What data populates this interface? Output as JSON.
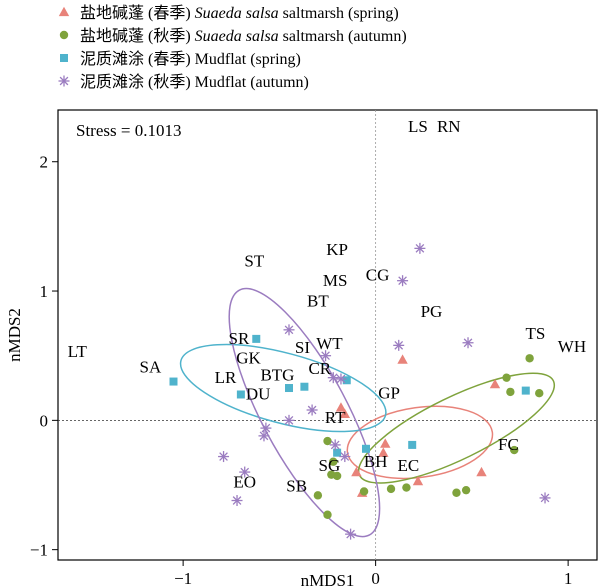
{
  "chart_data": {
    "type": "scatter",
    "xlabel": "nMDS1",
    "ylabel": "nMDS2",
    "xlim": [
      -1.65,
      1.15
    ],
    "ylim": [
      -1.08,
      2.4
    ],
    "x_ticks": [
      -1,
      0,
      1
    ],
    "y_ticks": [
      -1,
      0,
      1,
      2
    ],
    "annotation": "Stress = 0.1013",
    "reference_lines": {
      "x": 0,
      "y": 0
    },
    "legend_position": "top-left, outside plot",
    "legend": [
      {
        "series": 0,
        "prefix": "盐地碱蓬 (春季) ",
        "italic": "Suaeda salsa",
        "suffix": " saltmarsh (spring)"
      },
      {
        "series": 1,
        "prefix": "盐地碱蓬 (秋季) ",
        "italic": "Suaeda salsa",
        "suffix": " saltmarsh (autumn)"
      },
      {
        "series": 2,
        "prefix": "泥质滩涂 (春季) ",
        "italic": "",
        "suffix": "Mudflat (spring)"
      },
      {
        "series": 3,
        "prefix": "泥质滩涂 (秋季) ",
        "italic": "",
        "suffix": "Mudflat (autumn)"
      }
    ],
    "series": [
      {
        "marker": "triangle",
        "color": "#e8837a",
        "ellipse": {
          "cx": 0.23,
          "cy": -0.17,
          "rx": 0.38,
          "ry": 0.27,
          "angle": 8
        },
        "points": [
          [
            -0.18,
            0.1
          ],
          [
            -0.16,
            0.05
          ],
          [
            0.05,
            -0.18
          ],
          [
            0.14,
            0.47
          ],
          [
            0.22,
            -0.47
          ],
          [
            0.62,
            0.28
          ],
          [
            0.55,
            -0.4
          ],
          [
            -0.07,
            -0.56
          ],
          [
            0.04,
            -0.25
          ],
          [
            -0.1,
            -0.4
          ]
        ]
      },
      {
        "marker": "circle",
        "color": "#7fa33c",
        "ellipse": {
          "cx": 0.42,
          "cy": -0.06,
          "rx": 0.56,
          "ry": 0.24,
          "angle": 26
        },
        "points": [
          [
            -0.25,
            -0.73
          ],
          [
            -0.23,
            -0.42
          ],
          [
            -0.22,
            -0.32
          ],
          [
            -0.25,
            -0.16
          ],
          [
            -0.06,
            -0.55
          ],
          [
            0.08,
            -0.53
          ],
          [
            0.16,
            -0.52
          ],
          [
            0.42,
            -0.56
          ],
          [
            0.72,
            -0.23
          ],
          [
            0.68,
            0.33
          ],
          [
            0.7,
            0.22
          ],
          [
            0.8,
            0.48
          ],
          [
            0.85,
            0.21
          ],
          [
            -0.3,
            -0.58
          ],
          [
            -0.2,
            -0.43
          ],
          [
            0.47,
            -0.54
          ]
        ]
      },
      {
        "marker": "square",
        "color": "#4fb3cc",
        "ellipse": {
          "cx": -0.48,
          "cy": 0.25,
          "rx": 0.55,
          "ry": 0.27,
          "angle": -15
        },
        "points": [
          [
            -1.05,
            0.3
          ],
          [
            -0.62,
            0.63
          ],
          [
            -0.7,
            0.2
          ],
          [
            -0.45,
            0.25
          ],
          [
            -0.37,
            0.26
          ],
          [
            -0.15,
            0.31
          ],
          [
            -0.2,
            -0.25
          ],
          [
            -0.05,
            -0.22
          ],
          [
            0.19,
            -0.19
          ],
          [
            0.78,
            0.23
          ]
        ]
      },
      {
        "marker": "star",
        "color": "#9b7cc0",
        "ellipse": {
          "cx": -0.37,
          "cy": 0.06,
          "rx": 0.72,
          "ry": 0.33,
          "angle": -62
        },
        "points": [
          [
            -0.79,
            -0.28
          ],
          [
            -0.72,
            -0.62
          ],
          [
            -0.58,
            -0.12
          ],
          [
            -0.57,
            -0.06
          ],
          [
            -0.45,
            0.7
          ],
          [
            -0.45,
            0.0
          ],
          [
            -0.33,
            0.08
          ],
          [
            -0.26,
            0.5
          ],
          [
            -0.18,
            0.32
          ],
          [
            -0.16,
            -0.28
          ],
          [
            0.12,
            0.58
          ],
          [
            0.14,
            1.08
          ],
          [
            0.23,
            1.33
          ],
          [
            0.48,
            0.6
          ],
          [
            0.88,
            -0.6
          ],
          [
            -0.13,
            -0.88
          ],
          [
            -0.22,
            0.33
          ],
          [
            -0.21,
            -0.19
          ],
          [
            -0.68,
            -0.4
          ]
        ]
      }
    ],
    "species_labels": [
      {
        "text": "LS",
        "x": 0.22,
        "y": 2.23
      },
      {
        "text": "RN",
        "x": 0.38,
        "y": 2.23
      },
      {
        "text": "ST",
        "x": -0.63,
        "y": 1.19
      },
      {
        "text": "KP",
        "x": -0.2,
        "y": 1.28
      },
      {
        "text": "CG",
        "x": 0.01,
        "y": 1.08
      },
      {
        "text": "MS",
        "x": -0.21,
        "y": 1.04
      },
      {
        "text": "BT",
        "x": -0.3,
        "y": 0.88
      },
      {
        "text": "PG",
        "x": 0.29,
        "y": 0.8
      },
      {
        "text": "TS",
        "x": 0.83,
        "y": 0.63
      },
      {
        "text": "WH",
        "x": 1.02,
        "y": 0.53
      },
      {
        "text": "LT",
        "x": -1.55,
        "y": 0.49
      },
      {
        "text": "SR",
        "x": -0.71,
        "y": 0.59
      },
      {
        "text": "SI",
        "x": -0.38,
        "y": 0.52
      },
      {
        "text": "WT",
        "x": -0.24,
        "y": 0.55
      },
      {
        "text": "GK",
        "x": -0.66,
        "y": 0.44
      },
      {
        "text": "SA",
        "x": -1.17,
        "y": 0.37
      },
      {
        "text": "BTG",
        "x": -0.51,
        "y": 0.31
      },
      {
        "text": "CR",
        "x": -0.29,
        "y": 0.36
      },
      {
        "text": "LR",
        "x": -0.78,
        "y": 0.29
      },
      {
        "text": "DU",
        "x": -0.61,
        "y": 0.16
      },
      {
        "text": "GP",
        "x": 0.07,
        "y": 0.17
      },
      {
        "text": "RT",
        "x": -0.21,
        "y": -0.02
      },
      {
        "text": "FC",
        "x": 0.69,
        "y": -0.23
      },
      {
        "text": "BH",
        "x": 0.0,
        "y": -0.36
      },
      {
        "text": "SG",
        "x": -0.24,
        "y": -0.39
      },
      {
        "text": "EC",
        "x": 0.17,
        "y": -0.39
      },
      {
        "text": "EO",
        "x": -0.68,
        "y": -0.52
      },
      {
        "text": "SB",
        "x": -0.41,
        "y": -0.55
      }
    ]
  }
}
